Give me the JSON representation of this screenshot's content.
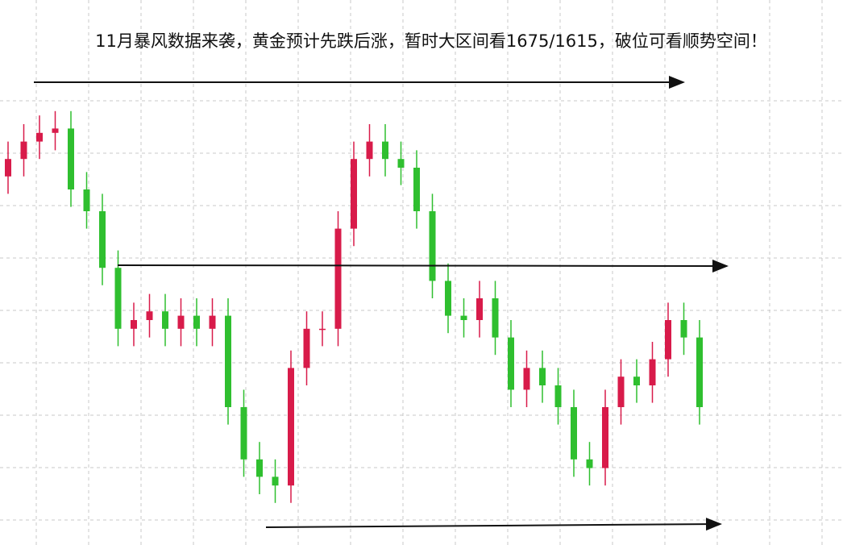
{
  "chart_data": {
    "type": "candlestick",
    "title": "11月暴风数据来袭，黄金预计先跌后涨，暂时大区间看1675/1615，破位可看顺势空间！",
    "open": [
      78,
      82,
      86,
      88,
      89,
      75,
      70,
      57,
      43,
      45,
      47,
      43,
      46,
      43,
      46,
      25,
      13,
      9,
      7,
      34,
      43,
      43,
      66,
      82,
      86,
      82,
      80,
      70,
      54,
      46,
      45,
      50,
      41,
      29,
      34,
      30,
      25,
      13,
      11,
      25,
      32,
      30,
      36,
      45,
      41
    ],
    "high": [
      86,
      90,
      92,
      93,
      93,
      79,
      74,
      61,
      49,
      51,
      51,
      50,
      50,
      50,
      50,
      29,
      17,
      13,
      38,
      47,
      47,
      70,
      86,
      90,
      90,
      86,
      84,
      74,
      58,
      50,
      54,
      54,
      45,
      38,
      38,
      34,
      29,
      17,
      29,
      36,
      36,
      40,
      49,
      49,
      45
    ],
    "low": [
      74,
      78,
      82,
      84,
      71,
      66,
      53,
      39,
      39,
      41,
      39,
      39,
      39,
      39,
      21,
      9,
      5,
      3,
      3,
      30,
      39,
      39,
      62,
      78,
      78,
      76,
      66,
      50,
      42,
      41,
      41,
      37,
      25,
      25,
      26,
      21,
      9,
      7,
      7,
      21,
      26,
      26,
      32,
      37,
      21
    ],
    "close": [
      82,
      86,
      88,
      89,
      75,
      70,
      57,
      43,
      45,
      47,
      43,
      46,
      43,
      46,
      25,
      13,
      9,
      7,
      34,
      43,
      43,
      66,
      82,
      86,
      82,
      80,
      70,
      54,
      46,
      45,
      50,
      41,
      29,
      34,
      30,
      25,
      13,
      11,
      25,
      32,
      30,
      36,
      45,
      41,
      25
    ],
    "ylim": [
      0,
      100
    ],
    "up_color": "#d81b4a",
    "down_color": "#2fbf2f",
    "grid": true
  }
}
